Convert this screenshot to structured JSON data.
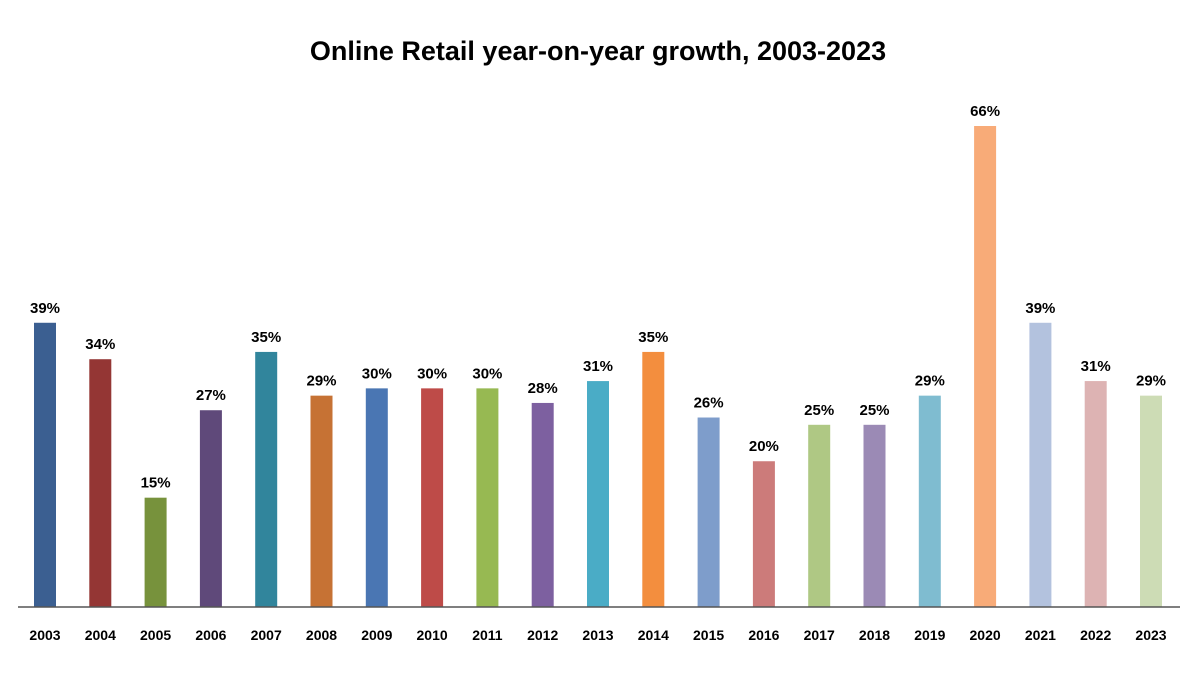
{
  "chart_data": {
    "type": "bar",
    "title": "Online Retail year-on-year growth, 2003-2023",
    "xlabel": "",
    "ylabel": "",
    "ylim": [
      0,
      66
    ],
    "grid": false,
    "legend": "none",
    "value_suffix": "%",
    "categories": [
      "2003",
      "2004",
      "2005",
      "2006",
      "2007",
      "2008",
      "2009",
      "2010",
      "2011",
      "2012",
      "2013",
      "2014",
      "2015",
      "2016",
      "2017",
      "2018",
      "2019",
      "2020",
      "2021",
      "2022",
      "2023"
    ],
    "values": [
      39,
      34,
      15,
      27,
      35,
      29,
      30,
      30,
      30,
      28,
      31,
      35,
      26,
      20,
      25,
      25,
      29,
      66,
      39,
      31,
      29
    ],
    "labels": [
      "39%",
      "34%",
      "15%",
      "27%",
      "35%",
      "29%",
      "30%",
      "30%",
      "30%",
      "28%",
      "31%",
      "35%",
      "26%",
      "20%",
      "25%",
      "25%",
      "29%",
      "66%",
      "39%",
      "31%",
      "29%"
    ],
    "colors": [
      "#3B5F91",
      "#943634",
      "#77923C",
      "#5F497A",
      "#31859C",
      "#C67234",
      "#4A76B3",
      "#BE4B48",
      "#97B952",
      "#7D60A0",
      "#4AACC6",
      "#F38E3E",
      "#7E9DCB",
      "#CC7B7A",
      "#AFC884",
      "#9B8AB5",
      "#7FBCD0",
      "#F8AB78",
      "#B3C2DE",
      "#DDB3B3",
      "#CDDCB5"
    ]
  }
}
